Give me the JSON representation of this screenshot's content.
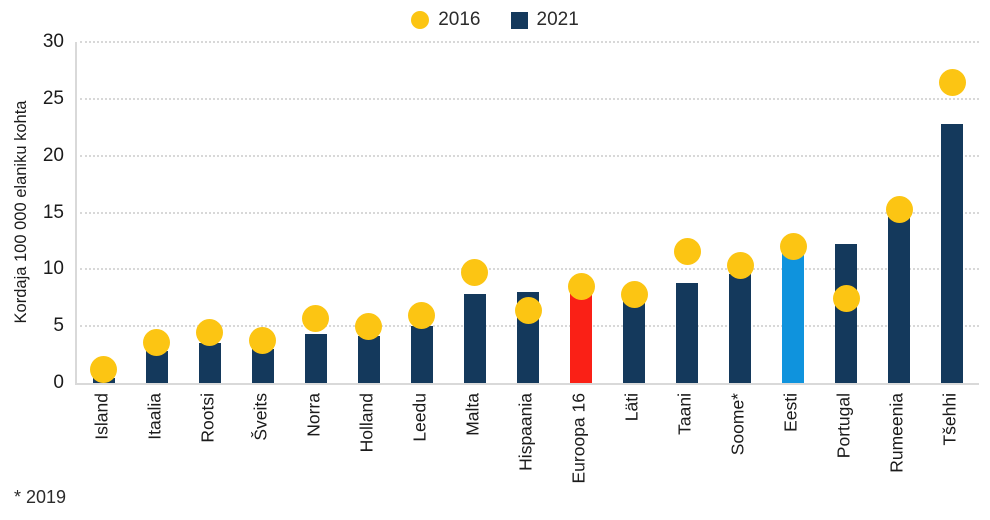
{
  "footnote": "* 2019",
  "colors": {
    "bar_default": "#14395c",
    "dot": "#fcc513",
    "highlight_europe": "#fa2016",
    "highlight_estonia": "#0f93dd",
    "axis": "#d9d9d9",
    "grid": "#d8d8d8",
    "text": "#1b1b1b"
  },
  "chart_data": {
    "type": "bar",
    "title": "",
    "xlabel": "",
    "ylabel": "Kordaja 100 000 elaniku kohta",
    "ylim": [
      0,
      30
    ],
    "yticks": [
      0,
      5,
      10,
      15,
      20,
      25,
      30
    ],
    "grid": "horizontal dotted lines at each ytick",
    "legend_position": "top-center",
    "categories": [
      "Island",
      "Itaalia",
      "Rootsi",
      "Šveits",
      "Norra",
      "Holland",
      "Leedu",
      "Malta",
      "Hispaania",
      "Euroopa 16",
      "Läti",
      "Taani",
      "Soome*",
      "Eesti",
      "Portugal",
      "Rumeenia",
      "Tšehhi"
    ],
    "series": [
      {
        "name": "2016",
        "marker": "circle",
        "color": "#fcc513",
        "values": [
          1.2,
          3.6,
          4.4,
          3.7,
          5.7,
          5.0,
          5.9,
          9.7,
          6.4,
          8.5,
          7.8,
          11.6,
          10.3,
          12.0,
          7.4,
          15.3,
          26.4
        ]
      },
      {
        "name": "2021",
        "marker": "bar",
        "color": "#14395c",
        "values": [
          0.4,
          2.8,
          3.5,
          3.0,
          4.3,
          4.1,
          5.0,
          7.8,
          8.0,
          7.9,
          7.3,
          8.8,
          9.6,
          11.4,
          12.2,
          14.6,
          22.8
        ],
        "bar_color_overrides": {
          "9": "#fa2016",
          "13": "#0f93dd"
        }
      }
    ]
  }
}
